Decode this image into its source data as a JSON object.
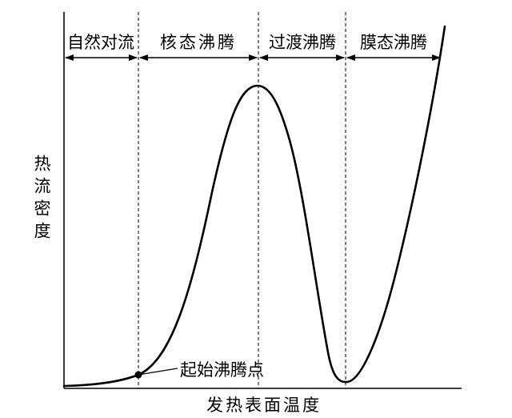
{
  "y_axis_label": "热流密度",
  "x_axis_label": "发热表面温度",
  "regions": [
    {
      "label": "自然对流"
    },
    {
      "label": "核态沸腾"
    },
    {
      "label": "过渡沸腾"
    },
    {
      "label": "膜态沸腾"
    }
  ],
  "onset_point_label": "起始沸腾点"
}
